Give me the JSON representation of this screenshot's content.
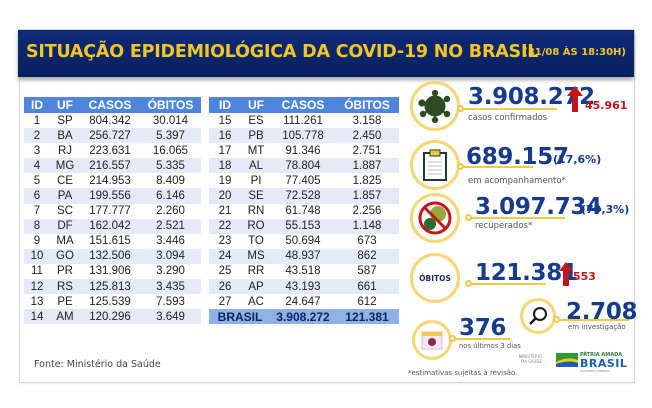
{
  "header": {
    "title": "SITUAÇÃO EPIDEMIOLÓGICA DA COVID-19 NO BRASIL",
    "timestamp": "(31/08 ÀS 18:30H)"
  },
  "table": {
    "columns": [
      "ID",
      "UF",
      "CASOS",
      "ÓBITOS"
    ],
    "left_rows": [
      [
        "1",
        "SP",
        "804.342",
        "30.014"
      ],
      [
        "2",
        "BA",
        "256.727",
        "5.397"
      ],
      [
        "3",
        "RJ",
        "223.631",
        "16.065"
      ],
      [
        "4",
        "MG",
        "216.557",
        "5.335"
      ],
      [
        "5",
        "CE",
        "214.953",
        "8.409"
      ],
      [
        "6",
        "PA",
        "199.556",
        "6.146"
      ],
      [
        "7",
        "SC",
        "177.777",
        "2.260"
      ],
      [
        "8",
        "DF",
        "162.042",
        "2.521"
      ],
      [
        "9",
        "MA",
        "151.615",
        "3.446"
      ],
      [
        "10",
        "GO",
        "132.506",
        "3.094"
      ],
      [
        "11",
        "PR",
        "131.906",
        "3.290"
      ],
      [
        "12",
        "RS",
        "125.813",
        "3.435"
      ],
      [
        "13",
        "PE",
        "125.539",
        "7.593"
      ],
      [
        "14",
        "AM",
        "120.296",
        "3.649"
      ]
    ],
    "right_rows": [
      [
        "15",
        "ES",
        "111.261",
        "3.158"
      ],
      [
        "16",
        "PB",
        "105.778",
        "2.450"
      ],
      [
        "17",
        "MT",
        "91.346",
        "2.751"
      ],
      [
        "18",
        "AL",
        "78.804",
        "1.887"
      ],
      [
        "19",
        "PI",
        "77.405",
        "1.825"
      ],
      [
        "20",
        "SE",
        "72.528",
        "1.857"
      ],
      [
        "21",
        "RN",
        "61.748",
        "2.256"
      ],
      [
        "22",
        "RO",
        "55.153",
        "1.148"
      ],
      [
        "23",
        "TO",
        "50.694",
        "673"
      ],
      [
        "24",
        "MS",
        "48.937",
        "862"
      ],
      [
        "25",
        "RR",
        "43.518",
        "587"
      ],
      [
        "26",
        "AP",
        "43.193",
        "661"
      ],
      [
        "27",
        "AC",
        "24.647",
        "612"
      ]
    ],
    "total": {
      "label": "BRASIL",
      "casos": "3.908.272",
      "obitos": "121.381"
    }
  },
  "source": "Fonte: Ministério da Saúde",
  "stats": {
    "confirmed": {
      "value": "3.908.272",
      "label": "casos confirmados",
      "increase": "45.961",
      "icon": "virus-icon"
    },
    "monitoring": {
      "value": "689.157",
      "pct": "(17,6%)",
      "label": "em acompanhamento*",
      "icon": "clipboard-icon"
    },
    "recovered": {
      "value": "3.097.734",
      "pct": "(79,3%)",
      "label": "recuperados*",
      "icon": "no-virus-icon"
    },
    "deaths": {
      "badge": "ÓBITOS",
      "value": "121.381",
      "increase": "553"
    },
    "investigation": {
      "value": "2.708",
      "label": "em investigação",
      "icon": "magnifier-icon"
    },
    "last_days": {
      "value": "376",
      "label": "nos últimos 3 dias",
      "icon": "calendar-icon"
    }
  },
  "footnote": "*estimativas sujeitas à revisão.",
  "logos": {
    "ministry": "MINISTÉRIO DA SAÚDE",
    "brand_top": "PÁTRIA AMADA",
    "brand_main": "BRASIL",
    "brand_sub": "GOVERNO FEDERAL"
  },
  "colors": {
    "banner": "#0e2a78",
    "title": "#f3c623",
    "table_header": "#4f86dc",
    "row_alt": "#e4ebf7",
    "total_row": "#8eb1e8",
    "stat_blue": "#173b8c",
    "increase_red": "#c0161c",
    "ring": "#f5d873"
  }
}
